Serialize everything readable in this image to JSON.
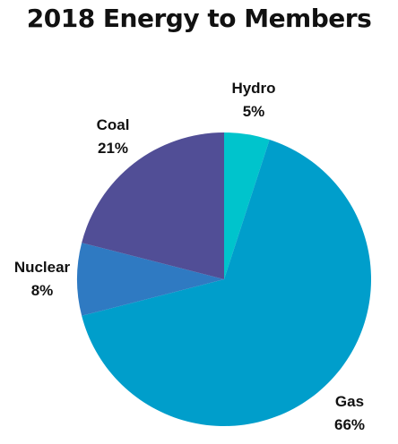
{
  "chart_data": {
    "type": "pie",
    "title": "2018 Energy to Members",
    "slices": [
      {
        "label": "Hydro",
        "value": 5,
        "value_label": "5%",
        "color": "#00c4cc"
      },
      {
        "label": "Gas",
        "value": 66,
        "value_label": "66%",
        "color": "#009ecb"
      },
      {
        "label": "Nuclear",
        "value": 8,
        "value_label": "8%",
        "color": "#2f7ac2"
      },
      {
        "label": "Coal",
        "value": 21,
        "value_label": "21%",
        "color": "#514e96"
      }
    ],
    "start": "12 o'clock",
    "direction": "clockwise"
  }
}
